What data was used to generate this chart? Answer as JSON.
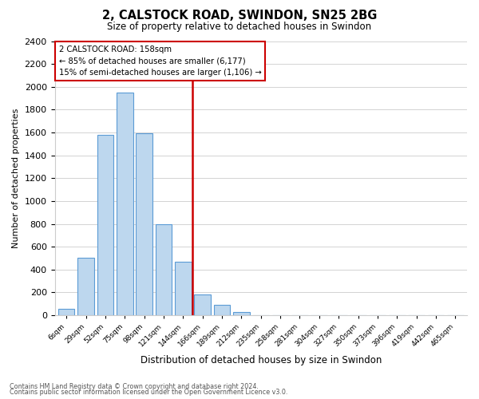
{
  "title": "2, CALSTOCK ROAD, SWINDON, SN25 2BG",
  "subtitle": "Size of property relative to detached houses in Swindon",
  "xlabel": "Distribution of detached houses by size in Swindon",
  "ylabel": "Number of detached properties",
  "bar_labels": [
    "6sqm",
    "29sqm",
    "52sqm",
    "75sqm",
    "98sqm",
    "121sqm",
    "144sqm",
    "166sqm",
    "189sqm",
    "212sqm",
    "235sqm",
    "258sqm",
    "281sqm",
    "304sqm",
    "327sqm",
    "350sqm",
    "373sqm",
    "396sqm",
    "419sqm",
    "442sqm",
    "465sqm"
  ],
  "bar_values": [
    55,
    500,
    1580,
    1950,
    1590,
    800,
    470,
    185,
    90,
    30,
    0,
    0,
    0,
    0,
    0,
    0,
    0,
    0,
    0,
    0,
    0
  ],
  "bar_color": "#bdd7ee",
  "bar_edge_color": "#5b9bd5",
  "vline_x_index": 7,
  "vline_color": "#cc0000",
  "ylim": [
    0,
    2400
  ],
  "yticks": [
    0,
    200,
    400,
    600,
    800,
    1000,
    1200,
    1400,
    1600,
    1800,
    2000,
    2200,
    2400
  ],
  "annotation_title": "2 CALSTOCK ROAD: 158sqm",
  "annotation_line1": "← 85% of detached houses are smaller (6,177)",
  "annotation_line2": "15% of semi-detached houses are larger (1,106) →",
  "annotation_box_color": "#ffffff",
  "annotation_box_edge": "#cc0000",
  "footer_line1": "Contains HM Land Registry data © Crown copyright and database right 2024.",
  "footer_line2": "Contains public sector information licensed under the Open Government Licence v3.0.",
  "background_color": "#ffffff",
  "grid_color": "#cccccc"
}
